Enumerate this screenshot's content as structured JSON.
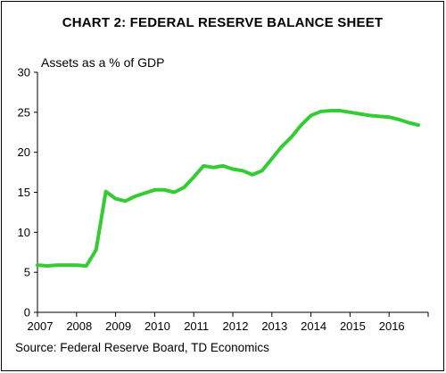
{
  "chart_data": {
    "type": "line",
    "title": "CHART 2: FEDERAL RESERVE BALANCE SHEET",
    "ylabel": "Assets as a % of GDP",
    "xlabel": "",
    "source": "Source: Federal Reserve Board, TD Economics",
    "ylim": [
      0,
      30
    ],
    "yticks": [
      0,
      5,
      10,
      15,
      20,
      25,
      30
    ],
    "xlim": [
      2007,
      2017
    ],
    "xticks": [
      "2007",
      "2008",
      "2009",
      "2010",
      "2011",
      "2012",
      "2013",
      "2014",
      "2015",
      "2016"
    ],
    "grid": false,
    "series": [
      {
        "color": "#33cc33",
        "x": [
          2007.0,
          2007.25,
          2007.5,
          2007.75,
          2008.0,
          2008.25,
          2008.5,
          2008.75,
          2009.0,
          2009.25,
          2009.5,
          2009.75,
          2010.0,
          2010.25,
          2010.5,
          2010.75,
          2011.0,
          2011.25,
          2011.5,
          2011.75,
          2012.0,
          2012.25,
          2012.5,
          2012.75,
          2013.0,
          2013.25,
          2013.5,
          2013.75,
          2014.0,
          2014.25,
          2014.5,
          2014.75,
          2015.0,
          2015.25,
          2015.5,
          2015.75,
          2016.0,
          2016.25,
          2016.5,
          2016.75
        ],
        "values": [
          5.9,
          5.8,
          5.9,
          5.9,
          5.9,
          5.8,
          7.8,
          15.1,
          14.2,
          13.9,
          14.5,
          14.9,
          15.3,
          15.3,
          15.0,
          15.6,
          16.9,
          18.3,
          18.1,
          18.3,
          17.9,
          17.7,
          17.2,
          17.7,
          19.2,
          20.7,
          21.9,
          23.4,
          24.6,
          25.1,
          25.2,
          25.2,
          25.0,
          24.8,
          24.6,
          24.5,
          24.4,
          24.1,
          23.7,
          23.4
        ]
      }
    ]
  }
}
